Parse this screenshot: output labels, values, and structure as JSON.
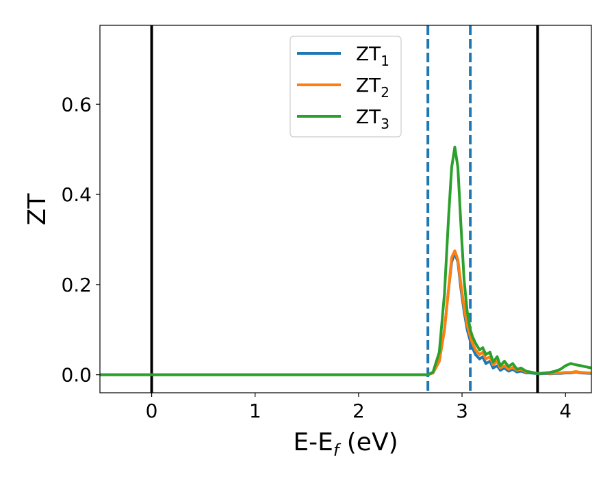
{
  "chart_data": {
    "type": "line",
    "xlabel_main": "E-E",
    "xlabel_sub": "f",
    "xlabel_unit": " (eV)",
    "ylabel": "ZT",
    "xlim": [
      -0.5,
      4.25
    ],
    "ylim": [
      -0.04,
      0.775
    ],
    "xticks": [
      0,
      1,
      2,
      3,
      4
    ],
    "xtick_labels": [
      "0",
      "1",
      "2",
      "3",
      "4"
    ],
    "yticks": [
      0.0,
      0.2,
      0.4,
      0.6
    ],
    "ytick_labels": [
      "0.0",
      "0.2",
      "0.4",
      "0.6"
    ],
    "grid": false,
    "legend_position": "top-center",
    "vlines_solid": [
      0.0,
      3.73
    ],
    "vlines_dashed": [
      2.67,
      3.08
    ],
    "vline_solid_color": "#000000",
    "vline_dashed_color": "#1f77b4",
    "series": [
      {
        "name_main": "ZT",
        "name_sub": "1",
        "color": "#1f77b4",
        "x": [
          -0.5,
          2.6,
          2.67,
          2.72,
          2.78,
          2.83,
          2.87,
          2.9,
          2.93,
          2.96,
          2.99,
          3.02,
          3.05,
          3.08,
          3.1,
          3.13,
          3.17,
          3.2,
          3.23,
          3.27,
          3.3,
          3.34,
          3.37,
          3.41,
          3.45,
          3.49,
          3.53,
          3.57,
          3.62,
          3.66,
          3.7,
          3.75,
          3.8,
          3.85,
          3.9,
          3.95,
          4.0,
          4.05,
          4.1,
          4.15,
          4.25
        ],
        "y": [
          0.0,
          0.0,
          0.0,
          0.004,
          0.03,
          0.1,
          0.19,
          0.25,
          0.27,
          0.25,
          0.19,
          0.14,
          0.1,
          0.075,
          0.06,
          0.045,
          0.035,
          0.04,
          0.025,
          0.03,
          0.015,
          0.02,
          0.01,
          0.015,
          0.008,
          0.012,
          0.006,
          0.008,
          0.004,
          0.004,
          0.003,
          0.002,
          0.003,
          0.002,
          0.003,
          0.003,
          0.004,
          0.004,
          0.006,
          0.004,
          0.003
        ]
      },
      {
        "name_main": "ZT",
        "name_sub": "2",
        "color": "#ff7f0e",
        "x": [
          -0.5,
          2.6,
          2.67,
          2.72,
          2.78,
          2.83,
          2.87,
          2.9,
          2.93,
          2.96,
          2.99,
          3.02,
          3.05,
          3.08,
          3.1,
          3.13,
          3.17,
          3.2,
          3.23,
          3.27,
          3.3,
          3.34,
          3.37,
          3.41,
          3.45,
          3.49,
          3.53,
          3.57,
          3.62,
          3.66,
          3.7,
          3.75,
          3.8,
          3.85,
          3.9,
          3.95,
          4.0,
          4.05,
          4.1,
          4.15,
          4.25
        ],
        "y": [
          0.0,
          0.0,
          0.0,
          0.004,
          0.03,
          0.1,
          0.19,
          0.26,
          0.275,
          0.255,
          0.2,
          0.15,
          0.11,
          0.085,
          0.07,
          0.055,
          0.045,
          0.05,
          0.035,
          0.04,
          0.022,
          0.03,
          0.015,
          0.02,
          0.012,
          0.016,
          0.01,
          0.012,
          0.006,
          0.006,
          0.004,
          0.003,
          0.004,
          0.003,
          0.004,
          0.004,
          0.005,
          0.005,
          0.007,
          0.005,
          0.004
        ]
      },
      {
        "name_main": "ZT",
        "name_sub": "3",
        "color": "#2ca02c",
        "x": [
          -0.5,
          2.6,
          2.67,
          2.72,
          2.78,
          2.83,
          2.87,
          2.9,
          2.93,
          2.96,
          2.99,
          3.02,
          3.05,
          3.08,
          3.1,
          3.13,
          3.17,
          3.2,
          3.23,
          3.27,
          3.3,
          3.34,
          3.37,
          3.41,
          3.45,
          3.49,
          3.53,
          3.57,
          3.62,
          3.66,
          3.7,
          3.75,
          3.8,
          3.85,
          3.9,
          3.95,
          4.0,
          4.05,
          4.1,
          4.15,
          4.25
        ],
        "y": [
          0.0,
          0.0,
          0.0,
          0.006,
          0.05,
          0.18,
          0.35,
          0.46,
          0.505,
          0.46,
          0.33,
          0.21,
          0.14,
          0.1,
          0.085,
          0.07,
          0.055,
          0.06,
          0.045,
          0.05,
          0.028,
          0.04,
          0.02,
          0.03,
          0.018,
          0.025,
          0.012,
          0.015,
          0.008,
          0.006,
          0.004,
          0.003,
          0.004,
          0.005,
          0.008,
          0.012,
          0.02,
          0.025,
          0.022,
          0.02,
          0.015
        ]
      }
    ]
  }
}
